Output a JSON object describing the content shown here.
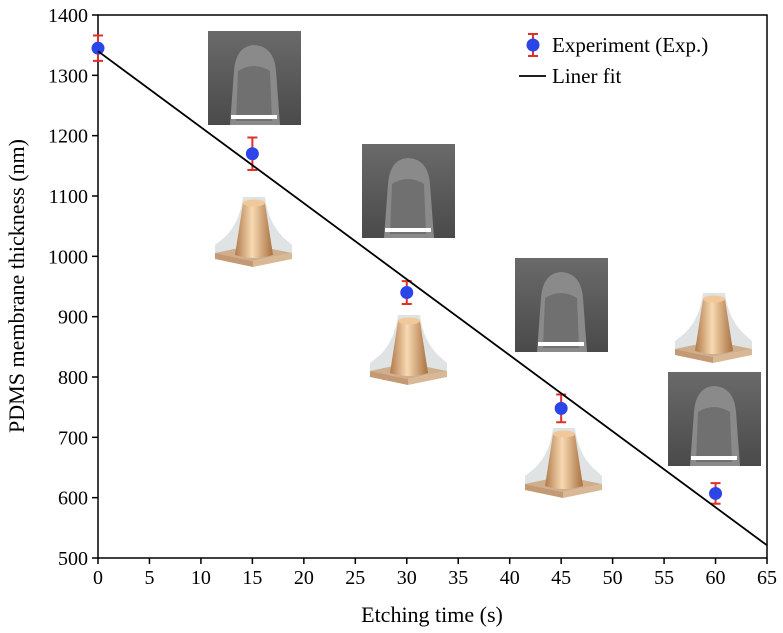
{
  "chart_data": {
    "type": "scatter",
    "xlabel": "Etching time (s)",
    "ylabel": "PDMS membrane thickness (nm)",
    "xlim": [
      0,
      65
    ],
    "xticks": [
      0,
      5,
      10,
      15,
      20,
      25,
      30,
      35,
      40,
      45,
      50,
      55,
      60,
      65
    ],
    "ylim": [
      500,
      1400
    ],
    "yticks": [
      500,
      600,
      700,
      800,
      900,
      1000,
      1100,
      1200,
      1300,
      1400
    ],
    "legend": "upper right",
    "series": [
      {
        "name": "Experiment (Exp.)",
        "type": "scatter",
        "color": "#2b45e8",
        "error_color": "#e0302a",
        "x": [
          0,
          15,
          30,
          45,
          60
        ],
        "values": [
          1345,
          1170,
          940,
          748,
          607
        ],
        "errors": [
          21,
          27,
          19,
          23,
          17
        ]
      },
      {
        "name": "Liner fit",
        "type": "line",
        "color": "#000000",
        "x": [
          0,
          65
        ],
        "values": [
          1340,
          521
        ]
      }
    ]
  }
}
